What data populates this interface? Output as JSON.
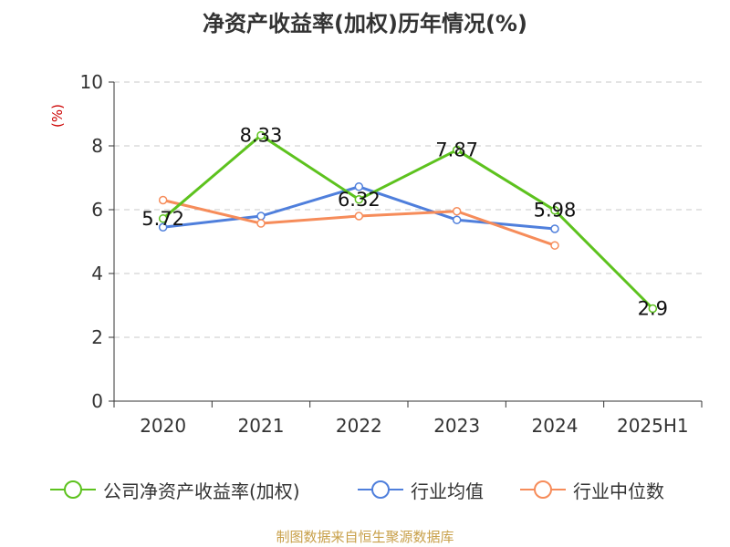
{
  "title": "净资产收益率(加权)历年情况(%)",
  "source": "制图数据来自恒生聚源数据库",
  "colors": {
    "company": "#5dc21e",
    "industry_avg": "#4f7fdc",
    "industry_median": "#f68c5a",
    "grid": "#c8c8c8",
    "axis": "#333333",
    "unit": "#cc0000"
  },
  "chart_data": {
    "type": "line",
    "title": "净资产收益率(加权)历年情况(%)",
    "ylabel": "(%)",
    "xlabel": "",
    "categories": [
      "2020",
      "2021",
      "2022",
      "2023",
      "2024",
      "2025H1"
    ],
    "ylim": [
      0,
      10
    ],
    "yticks": [
      0,
      2,
      4,
      6,
      8,
      10
    ],
    "grid": true,
    "legend": "bottom",
    "series": [
      {
        "name": "公司净资产收益率(加权)",
        "color": "#5dc21e",
        "values": [
          5.72,
          8.33,
          6.32,
          7.87,
          5.98,
          2.9
        ],
        "labels": [
          "5.72",
          "8.33",
          "6.32",
          "7.87",
          "5.98",
          "2.9"
        ]
      },
      {
        "name": "行业均值",
        "color": "#4f7fdc",
        "values": [
          5.45,
          5.8,
          6.72,
          5.68,
          5.4,
          null
        ]
      },
      {
        "name": "行业中位数",
        "color": "#f68c5a",
        "values": [
          6.3,
          5.57,
          5.8,
          5.95,
          4.88,
          null
        ]
      }
    ]
  }
}
